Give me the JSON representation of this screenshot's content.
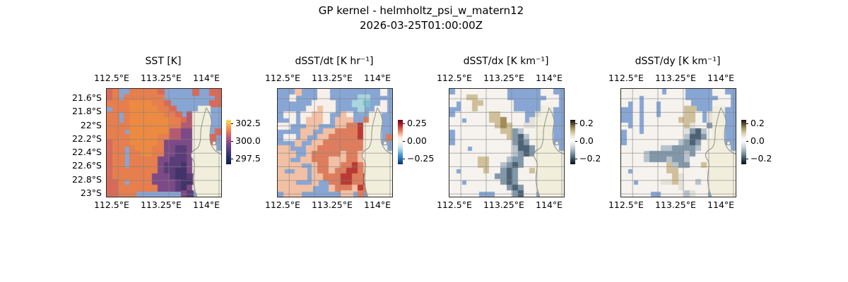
{
  "title": {
    "line1": "GP kernel - helmholtz_psi_w_matern12",
    "line2": "2026-03-25T01:00:00Z"
  },
  "chart_data": {
    "type": "heatmap",
    "layout": "1x4 geographic pcolormesh panels, shared lat/lon axes, per-panel vertical colorbar, gridlines on",
    "x_tick_labels": [
      "112.5°E",
      "113.25°E",
      "114°E"
    ],
    "y_tick_labels": [
      "21.6°S",
      "21.8°S",
      "22°S",
      "22.2°S",
      "22.4°S",
      "22.6°S",
      "22.8°S",
      "23°S"
    ],
    "map_colors": {
      "ocean_masked": "#87a6d4",
      "land": "#f1efdc",
      "coastline": "#8e8e8e",
      "gridline": "rgba(130,130,130,0.6)"
    },
    "grid_legend": "rows are north-to-south strings; B=masked ocean, L=land, other chars map to panel palette colors",
    "panels": [
      {
        "title": "SST [K]",
        "colorbar_ticks": [
          "302.5",
          "300.0",
          "297.5"
        ],
        "colorbar_range": [
          303.0,
          296.8
        ],
        "colorbar_gradient": [
          "#f2e14f",
          "#f4a94c",
          "#e4705c",
          "#b05384",
          "#70458e",
          "#463c7e",
          "#232f66",
          "#0b1d45"
        ],
        "palette": {
          "r": "#d96a5a",
          "o": "#e67e4e",
          "O": "#ec8a41",
          "m": "#b35a72",
          "p": "#7c4a86",
          "P": "#5a3d78",
          "d": "#42336a"
        },
        "grid": [
          "roBBooooorBBBBBrBBrr",
          "roBoooooooBBBBBBBBBr",
          "ooooOOOOoorBBBBBBBrr",
          "BoooOOOOOoorBBBBLLBB",
          "ooBoOOOOOOoorBmLLLBB",
          "ooBoOOOOOOOoormLLLBB",
          "ooooOOOOOOOoommLLLBB",
          "oooBOOOOOOOmmppLLLBr",
          "ooooOOOOOoommppLLLrB",
          "roooOOOOOopppppLLLrB",
          "rooBoOOOooppPPpLLLLB",
          "rooBooOOooppPPpLLLLL",
          "rooBoooooppPPPpLLLLL",
          "rooBooooopPPPdpLLLLL",
          "roooooooopPPddpLLLLL",
          "rooooooopppPddPpLLLL",
          "rroBooooppppPddpLLLL",
          "rrooooooopppPdpLLLLL",
          "rroooBBBBBBBBpPBLLLL"
        ]
      },
      {
        "title": "dSST/dt [K hr⁻¹]",
        "colorbar_ticks": [
          "0.25",
          "0.00",
          "−0.25"
        ],
        "colorbar_range": [
          0.3,
          -0.3
        ],
        "colorbar_gradient": [
          "#67001f",
          "#b2182b",
          "#d6604d",
          "#f4a582",
          "#f9ece4",
          "#f7f7f7",
          "#d1e5f0",
          "#92c5de",
          "#4393c3",
          "#2166ac",
          "#053061"
        ],
        "palette": {
          "w": "#f7efe9",
          "s": "#f2c0a4",
          "r": "#dd7d5d",
          "R": "#b93a34",
          "t": "#aad6de",
          "T": "#7fc0cf"
        },
        "grid": [
          "BBBsBBBwwBBBBBBBBBwB",
          "BBwBBBBwwBBBBBttBBBB",
          "BBBBBBwwwwBBBttTBBwB",
          "BBBBBwwswwBBBBtBBwwB",
          "BwwBwwsswBBswBBBLLBB",
          "BBwBwssswBsssBBrLLBB",
          "wwBBBssBBBssrrRLLLBB",
          "BBBBssBBssrrrrRLLLBB",
          "BwwBsBBssrrrrrRLLLBr",
          "BBBsBBssrrrrrrrLLLBB",
          "ssBBBssrrrrrrrrLLLLB",
          "sssBBsrrrrrsrrsLLLLL",
          "ssBBssrrrsssrrsLLLLL",
          "ssssBBsrrssrrRrsLLLL",
          "sBBssBsrrsrrRRrsLLLL",
          "sssssBssrrrRRrrRLLLL",
          "sssBBBsBBrrRRrrRLLLL",
          "ssssssBBBsrrrsRrLLLL",
          "BsssBBBBBBBssBrBLLLL"
        ]
      },
      {
        "title": "dSST/dx [K km⁻¹]",
        "colorbar_ticks": [
          "0.2",
          "0.0",
          "−0.2"
        ],
        "colorbar_range": [
          0.25,
          -0.25
        ],
        "colorbar_gradient": [
          "#17130c",
          "#584d2f",
          "#a2915e",
          "#cfc29a",
          "#ece7d8",
          "#ffffff",
          "#e7eaec",
          "#c0cad1",
          "#8ba0af",
          "#58707f",
          "#2c3e4c",
          "#0e151c"
        ],
        "palette": {
          "w": "#f6f3ef",
          "g": "#e3e1da",
          "k": "#cfc099",
          "K": "#a28d58",
          "s": "#b7c3cc",
          "d": "#8298a9",
          "D": "#4d6375"
        },
        "grid": [
          "BwwwwwwwwwBBBBBBwwBB",
          "wwwkkwwwwwBBBBBBBwwB",
          "wBwwkkwwwwwBBBBBwwwB",
          "BBwwkwwwwwwBBBBBLLBB",
          "BwwwwwwkkwwwwBBgLLBB",
          "wwBwwwwkkKwwwBgLLLBB",
          "wwwwwwwwkKkwwggLLLBB",
          "BwwwwwwwwkkdswwLLLBB",
          "BwwwwwwwwwkdDswLLLBB",
          "BwwwwwwwwwwdDdwLLLBB",
          "wwwBwwwwwwwsDDdLLLLB",
          "wwwwwwwwwwwsdDdLLLLL",
          "wwwwwkkwwwsddwwLLLLL",
          "wwwwwkkwwsdDdwwLLLLL",
          "wBwwwwkwwdDdwwkLLLLL",
          "wwwwwwwwddDdwwwwLLLL",
          "wwBwwwwwwdDdwwwwLLLL",
          "wwwwwwwwwwdDdwwLLLLL",
          "wwwwwBBBwwwdDwwBLLLL"
        ]
      },
      {
        "title": "dSST/dy [K km⁻¹]",
        "colorbar_ticks": [
          "0.2",
          "0.0",
          "−0.2"
        ],
        "colorbar_range": [
          0.25,
          -0.25
        ],
        "colorbar_gradient": [
          "#17130c",
          "#584d2f",
          "#a2915e",
          "#cfc29a",
          "#ece7d8",
          "#ffffff",
          "#e7eaec",
          "#c0cad1",
          "#8ba0af",
          "#58707f",
          "#2c3e4c",
          "#0e151c"
        ],
        "palette": {
          "w": "#f6f3ef",
          "g": "#e3e1da",
          "k": "#cfc099",
          "K": "#a28d58",
          "s": "#b7c3cc",
          "d": "#8298a9",
          "D": "#4d6375"
        },
        "grid": [
          "wwwwwwwBwwwBBBBBwwBB",
          "wwwBwwwwwwwBBBBBBwwB",
          "wBwBwwBwwwwwBBBBwwwB",
          "BBwBwwBwwwwkkBBBLLBB",
          "BBwBwwBwwwwkkwBgLLBB",
          "BBwBwwwwwwkkkwBgLLBB",
          "wBwBwwwwwwwkgwwdLLBB",
          "BwwBwwwwwwwgdDswLLBB",
          "BwwwwwwwwwwsDDdwLLBB",
          "BwwwwwwwwwsdDdwLLLBB",
          "wwwwwwwssddddswLLLLB",
          "wwwwsddddddsdwwLLLLL",
          "wwwwsdddsddswwwLLLLL",
          "wwwwwwwwksddwwkLLLLL",
          "wBwwwwwwkkwwwwwLLLLL",
          "wwwwwwwwwkgwwwwwLLLL",
          "wwBwwwwggkgwwswwLLLL",
          "wwwwwwwwwwgwwwwLLLLL",
          "wwwwwBBwwwwsgwwBLLLL"
        ]
      }
    ]
  }
}
